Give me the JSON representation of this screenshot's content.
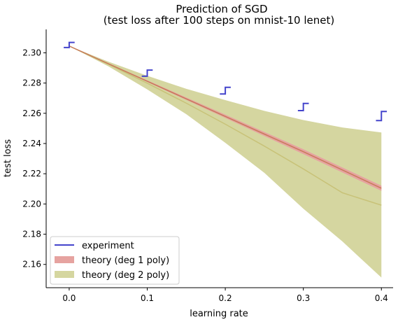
{
  "chart_data": {
    "type": "line",
    "title": "Prediction of SGD",
    "subtitle": "(test loss after 100 steps on mnist-10 lenet)",
    "xlabel": "learning rate",
    "ylabel": "test loss",
    "xlim": [
      -0.0295,
      0.415
    ],
    "ylim": [
      2.1446,
      2.3155
    ],
    "xticks": [
      0.0,
      0.1,
      0.2,
      0.3,
      0.4
    ],
    "xtick_labels": [
      "0.0",
      "0.1",
      "0.2",
      "0.3",
      "0.4"
    ],
    "yticks": [
      2.16,
      2.18,
      2.2,
      2.22,
      2.24,
      2.26,
      2.28,
      2.3
    ],
    "ytick_labels": [
      "2.16",
      "2.18",
      "2.20",
      "2.22",
      "2.24",
      "2.26",
      "2.28",
      "2.30"
    ],
    "grid": false,
    "legend_position": "lower-left",
    "legend": [
      {
        "label": "experiment",
        "kind": "line",
        "color": "#4444cc"
      },
      {
        "label": "theory (deg 1 poly)",
        "kind": "patch",
        "color": "#e6a3a0"
      },
      {
        "label": "theory (deg 2 poly)",
        "kind": "patch",
        "color": "#d5d6a0"
      }
    ],
    "series": [
      {
        "name": "theory (deg 2 poly)",
        "color": "#d5d6a0",
        "line_color": "#c8c278",
        "x": [
          0.0,
          0.05,
          0.1,
          0.15,
          0.2,
          0.25,
          0.3,
          0.35,
          0.4
        ],
        "center": [
          2.3045,
          2.2925,
          2.2799,
          2.2667,
          2.2528,
          2.2383,
          2.2232,
          2.2074,
          2.1992
        ],
        "lower": [
          2.3045,
          2.2911,
          2.2758,
          2.2594,
          2.2405,
          2.2206,
          2.1969,
          2.1752,
          2.1513
        ],
        "upper": [
          2.3045,
          2.2942,
          2.2848,
          2.2762,
          2.2687,
          2.2616,
          2.2555,
          2.2506,
          2.2473
        ]
      },
      {
        "name": "theory (deg 1 poly)",
        "color": "#e6a3a0",
        "line_color": "#c87a5a",
        "x": [
          0.0,
          0.1,
          0.2,
          0.3,
          0.4
        ],
        "center": [
          2.3045,
          2.2812,
          2.2579,
          2.2346,
          2.2104
        ],
        "lower": [
          2.3045,
          2.2807,
          2.2569,
          2.233,
          2.2087
        ],
        "upper": [
          2.3045,
          2.2818,
          2.2591,
          2.2362,
          2.2121
        ]
      },
      {
        "name": "experiment",
        "color": "#4444cc",
        "x": [
          0.0,
          0.1,
          0.2,
          0.3,
          0.4
        ],
        "low": [
          2.3035,
          2.2845,
          2.2728,
          2.2618,
          2.2552
        ],
        "high": [
          2.3069,
          2.2886,
          2.2772,
          2.2665,
          2.2612
        ],
        "half_width": 0.007
      }
    ]
  }
}
